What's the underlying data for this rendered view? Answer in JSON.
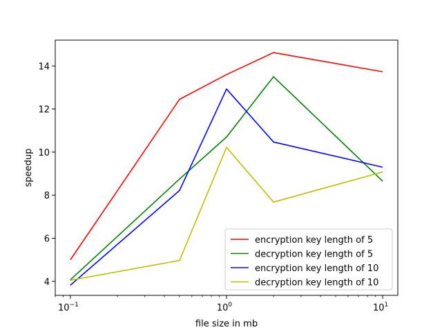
{
  "chart_data": {
    "type": "line",
    "xlabel": "file size in mb",
    "ylabel": "speedup",
    "xscale": "log",
    "x": [
      0.1,
      0.5,
      1,
      2,
      10
    ],
    "xlim": [
      0.08,
      12.5
    ],
    "ylim": [
      3.35,
      15.2
    ],
    "x_ticks": [
      {
        "value": 0.1,
        "base": "10",
        "exp": "−1"
      },
      {
        "value": 1,
        "base": "10",
        "exp": "0"
      },
      {
        "value": 10,
        "base": "10",
        "exp": "1"
      }
    ],
    "y_ticks": [
      4,
      6,
      8,
      10,
      12,
      14
    ],
    "grid": false,
    "legend_position": "lower-right",
    "series": [
      {
        "name": "encryption key length of 5",
        "color": "#ff0000",
        "values": [
          5.0,
          12.45,
          13.6,
          14.62,
          13.73
        ]
      },
      {
        "name": "decryption key length of 5",
        "color": "#008000",
        "values": [
          4.07,
          8.75,
          10.7,
          13.5,
          8.65
        ]
      },
      {
        "name": "encryption key length of 10",
        "color": "#0000ff",
        "values": [
          3.82,
          8.22,
          12.93,
          10.47,
          9.3
        ]
      },
      {
        "name": "decryption key length of 10",
        "color": "#bfbf00",
        "values": [
          4.05,
          4.97,
          10.22,
          7.68,
          9.08
        ]
      }
    ]
  }
}
